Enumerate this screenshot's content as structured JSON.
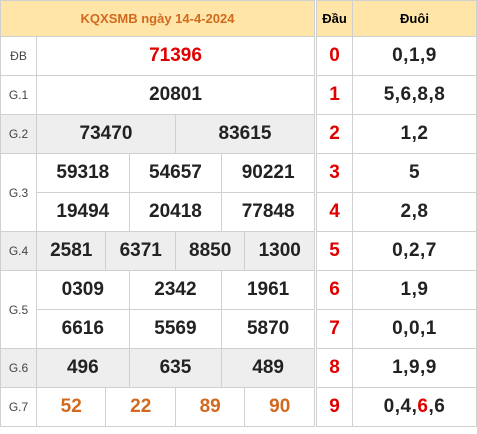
{
  "title": "KQXSMB ngày 14-4-2024",
  "rows": {
    "db": {
      "label": "ĐB",
      "values": [
        "71396"
      ]
    },
    "g1": {
      "label": "G.1",
      "values": [
        "20801"
      ]
    },
    "g2": {
      "label": "G.2",
      "values": [
        "73470",
        "83615"
      ]
    },
    "g3": {
      "label": "G.3",
      "values": [
        "59318",
        "54657",
        "90221",
        "19494",
        "20418",
        "77848"
      ]
    },
    "g4": {
      "label": "G.4",
      "values": [
        "2581",
        "6371",
        "8850",
        "1300"
      ]
    },
    "g5": {
      "label": "G.5",
      "values": [
        "0309",
        "2342",
        "1961",
        "6616",
        "5569",
        "5870"
      ]
    },
    "g6": {
      "label": "G.6",
      "values": [
        "496",
        "635",
        "489"
      ]
    },
    "g7": {
      "label": "G.7",
      "values": [
        "52",
        "22",
        "89",
        "90"
      ]
    }
  },
  "loto": {
    "header_dau": "Đầu",
    "header_duoi": "Đuôi",
    "rows": [
      {
        "dau": "0",
        "duoi": "0,1,9"
      },
      {
        "dau": "1",
        "duoi": "5,6,8,8"
      },
      {
        "dau": "2",
        "duoi": "1,2"
      },
      {
        "dau": "3",
        "duoi": "5"
      },
      {
        "dau": "4",
        "duoi": "2,8"
      },
      {
        "dau": "5",
        "duoi": "0,2,7"
      },
      {
        "dau": "6",
        "duoi": "1,9"
      },
      {
        "dau": "7",
        "duoi": "0,0,1"
      },
      {
        "dau": "8",
        "duoi": "1,9,9"
      },
      {
        "dau": "9",
        "duoi_parts": [
          "0,4,",
          "6",
          ",6"
        ]
      }
    ]
  }
}
